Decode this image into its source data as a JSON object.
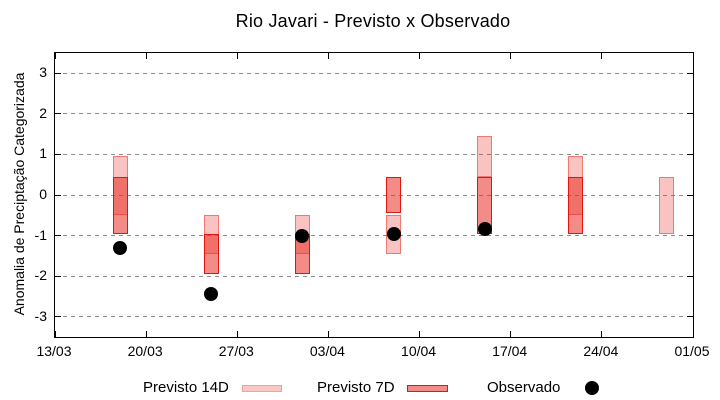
{
  "chart_data": {
    "type": "candlestick-ranges",
    "title": "Rio Javari - Previsto x Observado",
    "ylabel": "Anomalia de Preciptação Categorizada",
    "ylim": [
      -3.5,
      3.5
    ],
    "yticks": [
      -3,
      -2,
      -1,
      0,
      1,
      2,
      3
    ],
    "grid": "horizontal-dashed",
    "legend_position": "bottom-center",
    "x_axis": {
      "days_total": 49,
      "ticks": [
        {
          "day": 0,
          "label": "13/03"
        },
        {
          "day": 7,
          "label": "20/03"
        },
        {
          "day": 14,
          "label": "27/03"
        },
        {
          "day": 21,
          "label": "03/04"
        },
        {
          "day": 28,
          "label": "10/04"
        },
        {
          "day": 35,
          "label": "17/04"
        },
        {
          "day": 42,
          "label": "24/04"
        },
        {
          "day": 49,
          "label": "01/05"
        }
      ]
    },
    "legend": [
      {
        "label": "Previsto 14D",
        "marker": "box-light"
      },
      {
        "label": "Previsto 7D",
        "marker": "box-dark"
      },
      {
        "label": "Observado",
        "marker": "dot"
      }
    ],
    "clusters": [
      {
        "date": "18/03",
        "day": 5,
        "previsto_14d": [
          -0.5,
          0.95
        ],
        "previsto_7d": [
          -0.95,
          0.45
        ],
        "observado": -1.3
      },
      {
        "date": "25/03",
        "day": 12,
        "previsto_14d": [
          -1.45,
          -0.5
        ],
        "previsto_7d": [
          -1.95,
          -0.95
        ],
        "observado": -2.45
      },
      {
        "date": "01/04",
        "day": 19,
        "previsto_14d": [
          -1.45,
          -0.5
        ],
        "previsto_7d": [
          -1.95,
          -0.95
        ],
        "observado": -1.0
      },
      {
        "date": "08/04",
        "day": 26,
        "previsto_14d": [
          -1.45,
          -0.5
        ],
        "previsto_7d": [
          -0.45,
          0.45
        ],
        "observado": -0.95
      },
      {
        "date": "15/04",
        "day": 33,
        "previsto_14d": [
          0.45,
          1.45
        ],
        "previsto_7d": [
          -0.95,
          0.45
        ],
        "observado": -0.85
      },
      {
        "date": "22/04",
        "day": 40,
        "previsto_14d": [
          -0.5,
          0.95
        ],
        "previsto_7d": [
          -0.95,
          0.45
        ],
        "observado": null
      },
      {
        "date": "29/04",
        "day": 47,
        "previsto_14d": [
          -0.95,
          0.45
        ],
        "previsto_7d": null,
        "observado": null
      }
    ],
    "colors": {
      "previsto_14d_fill": "#f8c8c2",
      "previsto_14d_border": "#f0a19b",
      "previsto_7d_fill": "#f38b86",
      "previsto_7d_border": "#e41511",
      "overlap_fill": "#ef706a",
      "observado": "#000000",
      "gridline": "#8a8a8a",
      "axis": "#000000"
    }
  }
}
